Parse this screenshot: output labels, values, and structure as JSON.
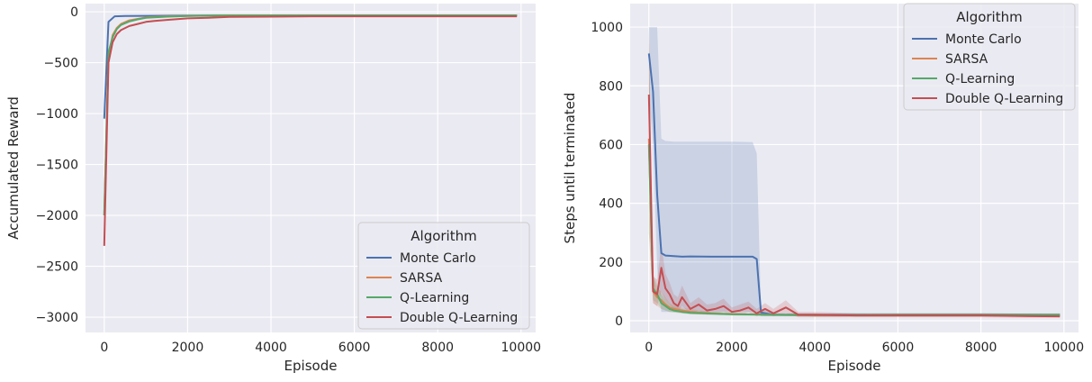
{
  "colors": {
    "monte_carlo": "#4c72b0",
    "sarsa": "#dd8452",
    "q_learning": "#55a868",
    "double_q": "#c44e52",
    "panel_bg": "#eaeaf2",
    "grid": "#ffffff"
  },
  "chart_data": [
    {
      "type": "line",
      "title": "",
      "xlabel": "Episode",
      "ylabel": "Accumulated Reward",
      "xlim": [
        -450,
        10350
      ],
      "ylim": [
        -3150,
        80
      ],
      "xticks": [
        0,
        2000,
        4000,
        6000,
        8000,
        10000
      ],
      "xtick_labels": [
        "0",
        "2000",
        "4000",
        "6000",
        "8000",
        "10000"
      ],
      "yticks": [
        0,
        -500,
        -1000,
        -1500,
        -2000,
        -2500,
        -3000
      ],
      "ytick_labels": [
        "0",
        "−500",
        "−1000",
        "−1500",
        "−2000",
        "−2500",
        "−3000"
      ],
      "grid": true,
      "legend": {
        "title": "Algorithm",
        "position": "lower-right",
        "entries": [
          "Monte Carlo",
          "SARSA",
          "Q-Learning",
          "Double Q-Learning"
        ]
      },
      "series": [
        {
          "name": "Monte Carlo",
          "color_key": "monte_carlo",
          "x": [
            0,
            100,
            250,
            500,
            1000,
            2000,
            4000,
            6000,
            8000,
            9900
          ],
          "y": [
            -1050,
            -100,
            -45,
            -42,
            -40,
            -38,
            -35,
            -35,
            -35,
            -35
          ]
        },
        {
          "name": "SARSA",
          "color_key": "sarsa",
          "x": [
            0,
            100,
            200,
            300,
            400,
            600,
            800,
            1000,
            1500,
            2000,
            3000,
            4000,
            6000,
            8000,
            9900
          ],
          "y": [
            -2000,
            -450,
            -230,
            -160,
            -120,
            -85,
            -70,
            -55,
            -45,
            -40,
            -35,
            -35,
            -35,
            -35,
            -35
          ]
        },
        {
          "name": "Q-Learning",
          "color_key": "q_learning",
          "x": [
            0,
            100,
            200,
            300,
            400,
            600,
            800,
            1000,
            1500,
            2000,
            3000,
            4000,
            6000,
            8000,
            9900
          ],
          "y": [
            -2000,
            -400,
            -250,
            -170,
            -130,
            -95,
            -75,
            -60,
            -48,
            -42,
            -38,
            -36,
            -35,
            -35,
            -35
          ]
        },
        {
          "name": "Double Q-Learning",
          "color_key": "double_q",
          "x": [
            0,
            100,
            200,
            300,
            400,
            500,
            600,
            800,
            1000,
            1200,
            1500,
            2000,
            2500,
            3000,
            4000,
            5000,
            6000,
            7000,
            8000,
            9000,
            9900
          ],
          "y": [
            -2300,
            -500,
            -300,
            -220,
            -180,
            -160,
            -140,
            -120,
            -100,
            -90,
            -80,
            -65,
            -60,
            -50,
            -48,
            -45,
            -45,
            -45,
            -45,
            -45,
            -45
          ]
        }
      ]
    },
    {
      "type": "line",
      "title": "",
      "xlabel": "Episode",
      "ylabel": "Steps until terminated",
      "xlim": [
        -450,
        10350
      ],
      "ylim": [
        -40,
        1080
      ],
      "xticks": [
        0,
        2000,
        4000,
        6000,
        8000,
        10000
      ],
      "xtick_labels": [
        "0",
        "2000",
        "4000",
        "6000",
        "8000",
        "10000"
      ],
      "yticks": [
        0,
        200,
        400,
        600,
        800,
        1000
      ],
      "ytick_labels": [
        "0",
        "200",
        "400",
        "600",
        "800",
        "1000"
      ],
      "grid": true,
      "legend": {
        "title": "Algorithm",
        "position": "upper-right",
        "entries": [
          "Monte Carlo",
          "SARSA",
          "Q-Learning",
          "Double Q-Learning"
        ]
      },
      "series": [
        {
          "name": "Monte Carlo",
          "color_key": "monte_carlo",
          "x": [
            0,
            100,
            200,
            300,
            400,
            600,
            800,
            1000,
            1500,
            2000,
            2500,
            2600,
            2700,
            3000,
            4000,
            6000,
            8000,
            9900
          ],
          "y": [
            910,
            780,
            430,
            230,
            222,
            220,
            218,
            219,
            218,
            218,
            218,
            210,
            28,
            20,
            20,
            20,
            20,
            20
          ],
          "ci_low": [
            780,
            600,
            180,
            30,
            30,
            30,
            30,
            30,
            30,
            30,
            30,
            30,
            15,
            15,
            15,
            15,
            15,
            15
          ],
          "ci_high": [
            1000,
            1000,
            1000,
            620,
            612,
            610,
            610,
            610,
            610,
            610,
            608,
            570,
            40,
            25,
            25,
            25,
            25,
            25
          ]
        },
        {
          "name": "SARSA",
          "color_key": "sarsa",
          "x": [
            0,
            100,
            200,
            300,
            400,
            500,
            600,
            800,
            1000,
            1500,
            2000,
            3000,
            4000,
            6000,
            8000,
            9900
          ],
          "y": [
            620,
            100,
            80,
            70,
            55,
            45,
            40,
            35,
            30,
            25,
            22,
            20,
            18,
            18,
            18,
            18
          ],
          "ci_low": [
            300,
            60,
            50,
            40,
            35,
            30,
            28,
            25,
            22,
            20,
            18,
            16,
            15,
            15,
            15,
            15
          ],
          "ci_high": [
            1000,
            150,
            110,
            100,
            80,
            60,
            55,
            45,
            40,
            30,
            27,
            24,
            22,
            22,
            22,
            22
          ]
        },
        {
          "name": "Q-Learning",
          "color_key": "q_learning",
          "x": [
            0,
            100,
            200,
            300,
            400,
            500,
            600,
            800,
            1000,
            1500,
            2000,
            3000,
            4000,
            6000,
            8000,
            9900
          ],
          "y": [
            600,
            110,
            90,
            60,
            50,
            40,
            35,
            30,
            27,
            24,
            22,
            20,
            19,
            20,
            20,
            20
          ],
          "ci_low": [
            300,
            70,
            60,
            40,
            35,
            30,
            28,
            25,
            22,
            20,
            18,
            16,
            15,
            15,
            15,
            15
          ],
          "ci_high": [
            950,
            160,
            120,
            90,
            70,
            55,
            48,
            40,
            35,
            30,
            27,
            24,
            23,
            24,
            24,
            24
          ]
        },
        {
          "name": "Double Q-Learning",
          "color_key": "double_q",
          "x": [
            0,
            100,
            200,
            300,
            400,
            500,
            600,
            700,
            800,
            1000,
            1200,
            1400,
            1600,
            1800,
            2000,
            2200,
            2400,
            2600,
            2800,
            3000,
            3300,
            3600,
            4000,
            5000,
            6000,
            7000,
            8000,
            9000,
            9900
          ],
          "y": [
            770,
            100,
            90,
            180,
            110,
            90,
            60,
            50,
            80,
            40,
            55,
            35,
            40,
            50,
            30,
            35,
            45,
            25,
            40,
            25,
            45,
            20,
            20,
            18,
            18,
            18,
            18,
            16,
            15
          ],
          "ci_low": [
            550,
            60,
            50,
            100,
            70,
            55,
            40,
            30,
            50,
            25,
            35,
            20,
            25,
            30,
            18,
            20,
            28,
            15,
            25,
            15,
            25,
            12,
            12,
            12,
            12,
            12,
            12,
            10,
            10
          ],
          "ci_high": [
            1000,
            150,
            140,
            260,
            160,
            130,
            90,
            80,
            120,
            60,
            80,
            55,
            60,
            75,
            45,
            55,
            65,
            40,
            60,
            40,
            70,
            30,
            30,
            26,
            26,
            26,
            26,
            24,
            22
          ]
        }
      ]
    }
  ]
}
